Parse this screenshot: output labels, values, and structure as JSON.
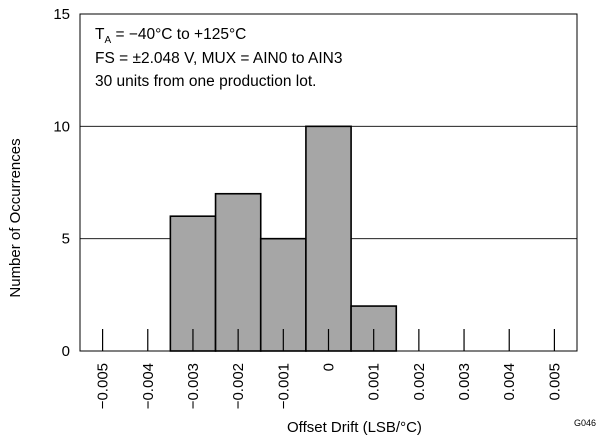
{
  "chart_data": {
    "type": "bar",
    "title": "",
    "xlabel": "Offset Drift (LSB/°C)",
    "ylabel": "Number of Occurrences",
    "ylim": [
      0,
      15
    ],
    "yticks": [
      0,
      5,
      10,
      15
    ],
    "grid": true,
    "x_ticks": [
      "−0.005",
      "−0.004",
      "−0.003",
      "−0.002",
      "−0.001",
      "0",
      "0.001",
      "0.002",
      "0.003",
      "0.004",
      "0.005"
    ],
    "categories": [
      "−0.005",
      "−0.004",
      "−0.003",
      "−0.002",
      "−0.001",
      "0",
      "0.001",
      "0.002",
      "0.003",
      "0.004",
      "0.005"
    ],
    "values": [
      0,
      0,
      6,
      7,
      5,
      10,
      2,
      0,
      0,
      0,
      0
    ],
    "bar_color": "#a6a6a6",
    "annotations": {
      "line1_main": "T",
      "line1_sub": "A",
      "line1_rest": " = −40°C to +125°C",
      "line2": "FS = ±2.048 V, MUX = AIN0 to AIN3",
      "line3": "30 units from one production lot."
    },
    "figure_code": "G046"
  }
}
